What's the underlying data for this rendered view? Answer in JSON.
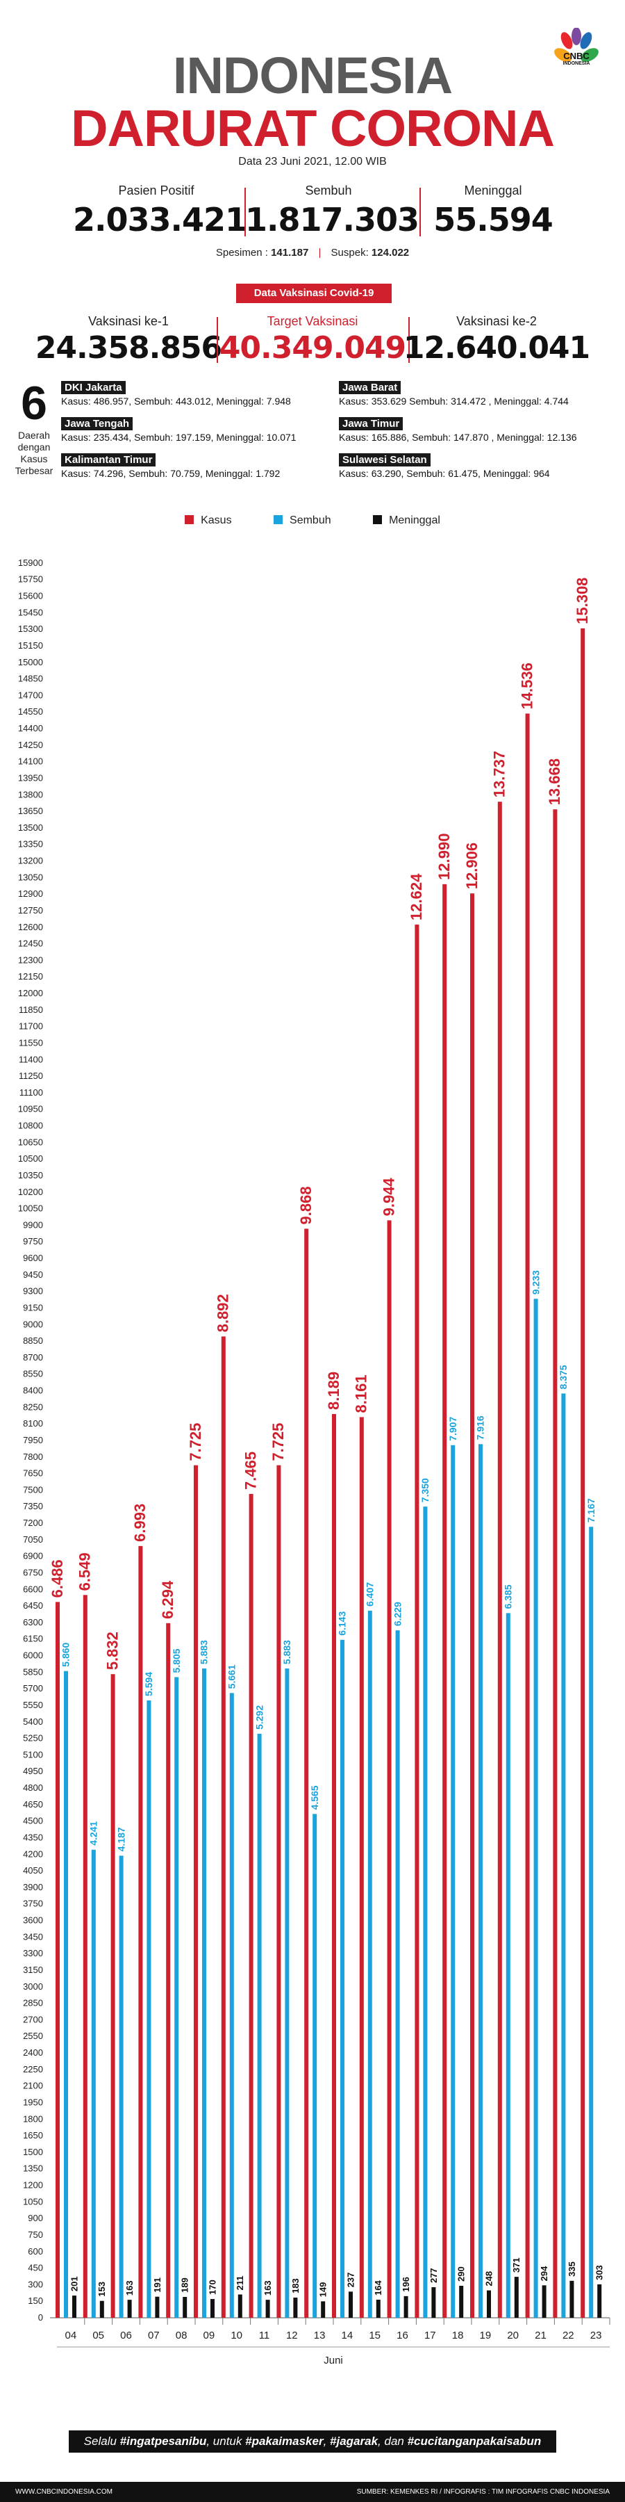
{
  "header": {
    "title_line1": "INDONESIA",
    "title_line2": "DARURAT CORONA",
    "logo_text": "CNBC",
    "logo_sub": "INDONESIA",
    "date_text": "Data 23 Juni 2021, 12.00 WIB"
  },
  "stats": {
    "positive_label": "Pasien Positif",
    "positive_value": "2.033.421",
    "recovered_label": "Sembuh",
    "recovered_value": "1.817.303",
    "deaths_label": "Meninggal",
    "deaths_value": "55.594",
    "specimen_label": "Spesimen : ",
    "specimen_value": "141.187",
    "suspect_label": "Suspek: ",
    "suspect_value": "124.022"
  },
  "vaccination": {
    "title": "Data Vaksinasi Covid-19",
    "dose1_label": "Vaksinasi ke-1",
    "dose1_value": "24.358.856",
    "target_label": "Target Vaksinasi",
    "target_value": "40.349.049",
    "dose2_label": "Vaksinasi ke-2",
    "dose2_value": "12.640.041"
  },
  "regions": {
    "count": "6",
    "count_label": "Daerah dengan Kasus Terbesar",
    "items": [
      {
        "name": "DKI Jakarta",
        "detail": "Kasus: 486.957, Sembuh: 443.012, Meninggal: 7.948"
      },
      {
        "name": "Jawa Barat",
        "detail": "Kasus: 353.629 Sembuh: 314.472 , Meninggal: 4.744"
      },
      {
        "name": "Jawa Tengah",
        "detail": "Kasus: 235.434, Sembuh: 197.159, Meninggal: 10.071"
      },
      {
        "name": "Jawa Timur",
        "detail": "Kasus: 165.886, Sembuh: 147.870 , Meninggal: 12.136"
      },
      {
        "name": "Kalimantan Timur",
        "detail": "Kasus: 74.296, Sembuh: 70.759, Meninggal: 1.792"
      },
      {
        "name": "Sulawesi Selatan",
        "detail": "Kasus: 63.290, Sembuh: 61.475, Meninggal: 964"
      }
    ]
  },
  "legend": {
    "kasus": "Kasus",
    "sembuh": "Sembuh",
    "meninggal": "Meninggal"
  },
  "colors": {
    "kasus": "#d0202d",
    "sembuh": "#1aa3dc",
    "meninggal": "#111111"
  },
  "chart_data": {
    "type": "bar",
    "xlabel": "Juni",
    "ylim": [
      0,
      16000
    ],
    "ytick_step": 150,
    "ytick_min": 0,
    "ytick_max": 15950,
    "categories": [
      "04",
      "05",
      "06",
      "07",
      "08",
      "09",
      "10",
      "11",
      "12",
      "13",
      "14",
      "15",
      "16",
      "17",
      "18",
      "19",
      "20",
      "21",
      "22",
      "23"
    ],
    "series": [
      {
        "name": "Kasus",
        "values": [
          6486,
          6549,
          5832,
          6993,
          6294,
          7725,
          8892,
          7465,
          7725,
          9868,
          8189,
          8161,
          9944,
          12624,
          12990,
          12906,
          13737,
          14536,
          13668,
          15308
        ],
        "labels": [
          "6.486",
          "6.549",
          "5.832",
          "6.993",
          "6.294",
          "7.725",
          "8.892",
          "7.465",
          "7.725",
          "9.868",
          "8.189",
          "8.161",
          "9.944",
          "12.624",
          "12.990",
          "12.906",
          "13.737",
          "14.536",
          "13.668",
          "15.308"
        ]
      },
      {
        "name": "Sembuh",
        "values": [
          5860,
          4241,
          4187,
          5594,
          5805,
          5883,
          5661,
          5292,
          5883,
          4565,
          6143,
          6407,
          6229,
          7350,
          7907,
          7916,
          6385,
          9233,
          8375,
          7167
        ],
        "labels": [
          "5.860",
          "4.241",
          "4.187",
          "5.594",
          "5.805",
          "5.883",
          "5.661",
          "5.292",
          "5.883",
          "4.565",
          "6.143",
          "6.407",
          "6.229",
          "7.350",
          "7.907",
          "7.916",
          "6.385",
          "9.233",
          "8.375",
          "7.167"
        ]
      },
      {
        "name": "Meninggal",
        "values": [
          201,
          153,
          163,
          191,
          189,
          170,
          211,
          163,
          183,
          149,
          237,
          164,
          196,
          277,
          290,
          248,
          371,
          294,
          335,
          303
        ],
        "labels": [
          "201",
          "153",
          "163",
          "191",
          "189",
          "170",
          "211",
          "163",
          "183",
          "149",
          "237",
          "164",
          "196",
          "277",
          "290",
          "248",
          "371",
          "294",
          "335",
          "303"
        ]
      }
    ]
  },
  "footer": {
    "slogan_pre": "Selalu ",
    "tag1": "#ingatpesanibu",
    "slogan_mid1": ", untuk ",
    "tag2": "#pakaimasker",
    "slogan_mid2": ", ",
    "tag3": "#jagarak",
    "slogan_mid3": ", dan ",
    "tag4": "#cucitanganpakaisabun",
    "site": "WWW.CNBCINDONESIA.COM",
    "source": "SUMBER: KEMENKES RI / INFOGRAFIS : TIM INFOGRAFIS CNBC INDONESIA"
  }
}
